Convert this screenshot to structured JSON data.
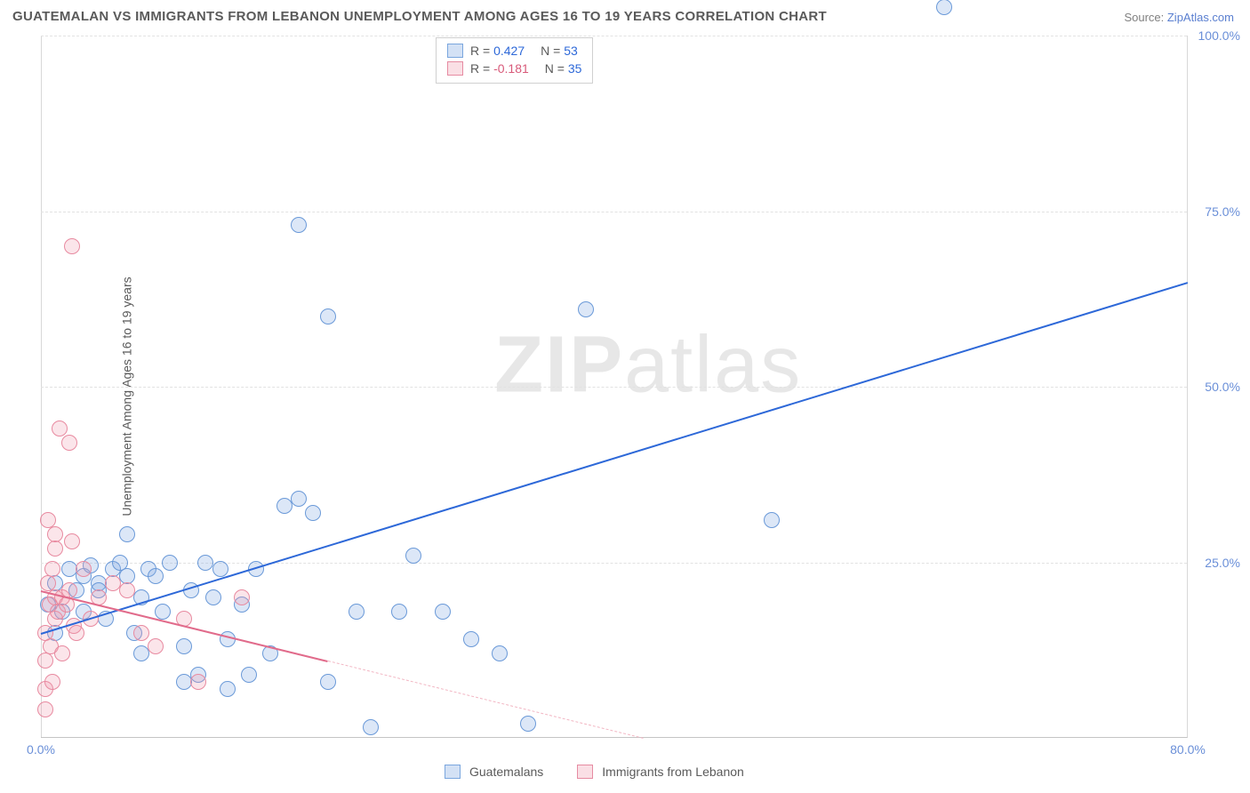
{
  "title": "GUATEMALAN VS IMMIGRANTS FROM LEBANON UNEMPLOYMENT AMONG AGES 16 TO 19 YEARS CORRELATION CHART",
  "source_prefix": "Source: ",
  "source_link": "ZipAtlas.com",
  "y_axis_label": "Unemployment Among Ages 16 to 19 years",
  "watermark_zip": "ZIP",
  "watermark_atlas": "atlas",
  "chart": {
    "type": "scatter",
    "xlim": [
      0,
      80
    ],
    "ylim": [
      0,
      100
    ],
    "y_ticks": [
      0,
      25,
      50,
      75,
      100
    ],
    "y_tick_labels": [
      "",
      "25.0%",
      "50.0%",
      "75.0%",
      "100.0%"
    ],
    "x_tick_left": "0.0%",
    "x_tick_right": "80.0%",
    "background_color": "#ffffff",
    "grid_color": "#e2e2e2",
    "border_color": "#d8d8d8",
    "marker_radius": 9,
    "series": [
      {
        "name": "Guatemalans",
        "color_fill": "rgba(130,170,225,0.28)",
        "color_stroke": "#6a99d8",
        "trend_color": "#2d68d8",
        "r_value": "0.427",
        "r_sign": "pos",
        "n_value": "53",
        "trend": {
          "x1": 0,
          "y1": 15,
          "x2": 80,
          "y2": 65,
          "dash_after_x": 80
        },
        "points": [
          [
            0.5,
            19
          ],
          [
            1,
            15
          ],
          [
            1,
            22
          ],
          [
            1.5,
            18
          ],
          [
            2,
            24
          ],
          [
            2.5,
            21
          ],
          [
            3,
            23
          ],
          [
            3,
            18
          ],
          [
            3.5,
            24.5
          ],
          [
            4,
            22
          ],
          [
            4,
            21
          ],
          [
            4.5,
            17
          ],
          [
            5,
            24
          ],
          [
            5.5,
            25
          ],
          [
            6,
            29
          ],
          [
            6,
            23
          ],
          [
            6.5,
            15
          ],
          [
            7,
            20
          ],
          [
            7,
            12
          ],
          [
            7.5,
            24
          ],
          [
            8,
            23
          ],
          [
            8.5,
            18
          ],
          [
            9,
            25
          ],
          [
            10,
            8
          ],
          [
            10,
            13
          ],
          [
            10.5,
            21
          ],
          [
            11,
            9
          ],
          [
            11.5,
            25
          ],
          [
            12,
            20
          ],
          [
            12.5,
            24
          ],
          [
            13,
            14
          ],
          [
            13,
            7
          ],
          [
            14,
            19
          ],
          [
            14.5,
            9
          ],
          [
            15,
            24
          ],
          [
            16,
            12
          ],
          [
            17,
            33
          ],
          [
            18,
            34
          ],
          [
            18,
            73
          ],
          [
            19,
            32
          ],
          [
            20,
            60
          ],
          [
            20,
            8
          ],
          [
            22,
            18
          ],
          [
            23,
            1.5
          ],
          [
            25,
            18
          ],
          [
            26,
            26
          ],
          [
            28,
            18
          ],
          [
            30,
            14
          ],
          [
            32,
            12
          ],
          [
            34,
            2
          ],
          [
            38,
            61
          ],
          [
            51,
            31
          ],
          [
            63,
            104
          ]
        ]
      },
      {
        "name": "Immigrants from Lebanon",
        "color_fill": "rgba(240,150,170,0.25)",
        "color_stroke": "#e88aa0",
        "trend_color": "#e16b8b",
        "r_value": "-0.181",
        "r_sign": "neg",
        "n_value": "35",
        "trend": {
          "x1": 0,
          "y1": 21,
          "x2": 20,
          "y2": 11,
          "dash_after_x": 20,
          "dash_x2": 42,
          "dash_y2": 0
        },
        "points": [
          [
            0.3,
            7
          ],
          [
            0.3,
            11
          ],
          [
            0.3,
            15
          ],
          [
            0.3,
            4
          ],
          [
            0.5,
            22
          ],
          [
            0.5,
            31
          ],
          [
            0.6,
            19
          ],
          [
            0.7,
            13
          ],
          [
            0.8,
            24
          ],
          [
            0.8,
            8
          ],
          [
            1,
            17
          ],
          [
            1,
            20
          ],
          [
            1,
            27
          ],
          [
            1,
            29
          ],
          [
            1.2,
            18
          ],
          [
            1.3,
            44
          ],
          [
            1.5,
            12
          ],
          [
            1.5,
            20
          ],
          [
            1.8,
            19
          ],
          [
            2,
            42
          ],
          [
            2,
            21
          ],
          [
            2.2,
            70
          ],
          [
            2.2,
            28
          ],
          [
            2.3,
            16
          ],
          [
            2.5,
            15
          ],
          [
            3,
            24
          ],
          [
            3.5,
            17
          ],
          [
            4,
            20
          ],
          [
            5,
            22
          ],
          [
            6,
            21
          ],
          [
            7,
            15
          ],
          [
            8,
            13
          ],
          [
            10,
            17
          ],
          [
            11,
            8
          ],
          [
            14,
            20
          ]
        ]
      }
    ],
    "legend_bottom": [
      {
        "swatch": "blue",
        "label_key": "chart.series.0.name"
      },
      {
        "swatch": "pink",
        "label_key": "chart.series.1.name"
      }
    ]
  }
}
